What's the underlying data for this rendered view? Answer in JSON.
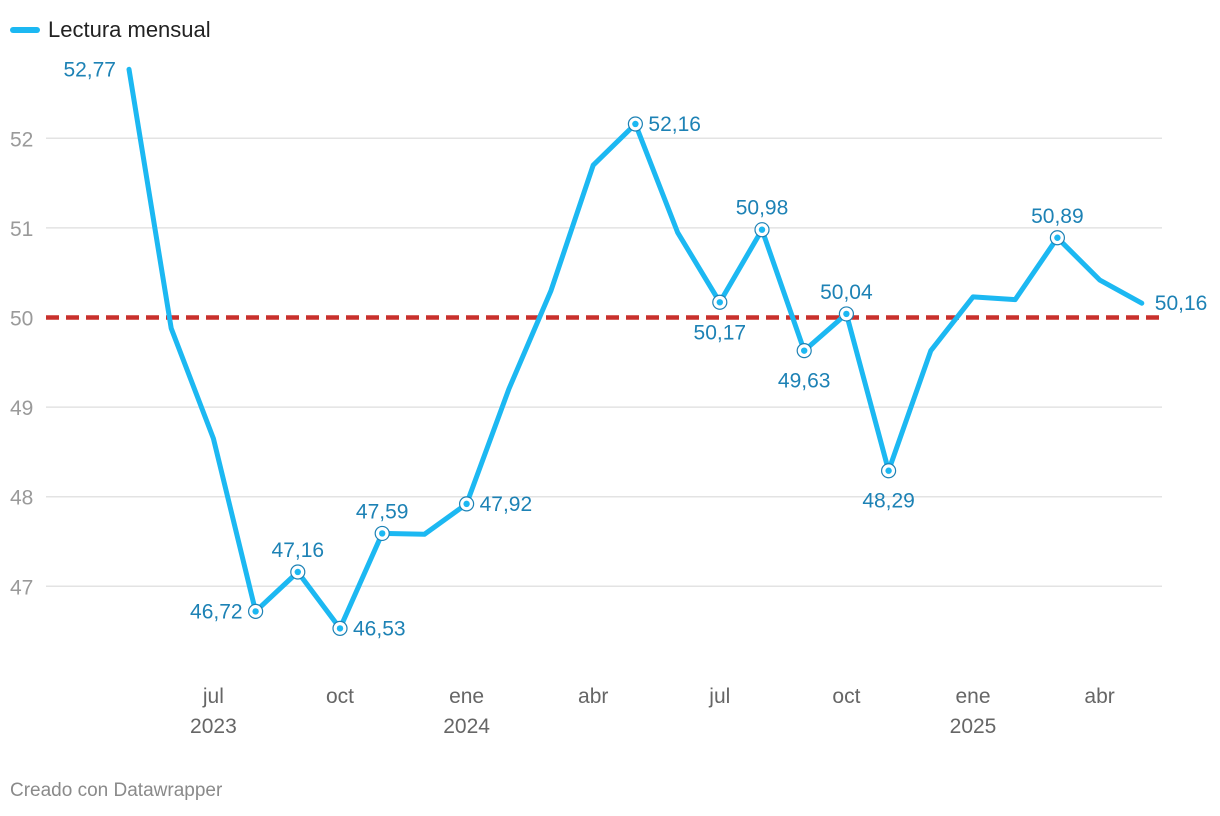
{
  "legend": {
    "label": "Lectura mensual"
  },
  "footer": {
    "credit": "Creado con Datawrapper"
  },
  "colors": {
    "line": "#1cb8f2",
    "reference": "#c9302c",
    "label": "#1d82b5",
    "grid": "#e3e3e3"
  },
  "chart_data": {
    "type": "line",
    "x": [
      "2023-05",
      "2023-06",
      "2023-07",
      "2023-08",
      "2023-09",
      "2023-10",
      "2023-11",
      "2023-12",
      "2024-01",
      "2024-02",
      "2024-03",
      "2024-04",
      "2024-05",
      "2024-06",
      "2024-07",
      "2024-08",
      "2024-09",
      "2024-10",
      "2024-11",
      "2024-12",
      "2025-01",
      "2025-02",
      "2025-03",
      "2025-04",
      "2025-05"
    ],
    "series": [
      {
        "name": "Lectura mensual",
        "values": [
          52.77,
          49.88,
          48.65,
          46.72,
          47.16,
          46.53,
          47.59,
          47.58,
          47.92,
          49.2,
          50.3,
          51.7,
          52.16,
          50.95,
          50.17,
          50.98,
          49.63,
          50.04,
          48.29,
          49.63,
          50.23,
          50.2,
          50.89,
          50.42,
          50.16
        ]
      }
    ],
    "labels": [
      {
        "index": 0,
        "text": "52,77",
        "pos": "left"
      },
      {
        "index": 3,
        "text": "46,72",
        "pos": "left"
      },
      {
        "index": 4,
        "text": "47,16",
        "pos": "top"
      },
      {
        "index": 5,
        "text": "46,53",
        "pos": "right"
      },
      {
        "index": 6,
        "text": "47,59",
        "pos": "top"
      },
      {
        "index": 8,
        "text": "47,92",
        "pos": "right"
      },
      {
        "index": 12,
        "text": "52,16",
        "pos": "right"
      },
      {
        "index": 14,
        "text": "50,17",
        "pos": "bottom"
      },
      {
        "index": 15,
        "text": "50,98",
        "pos": "top"
      },
      {
        "index": 16,
        "text": "49,63",
        "pos": "bottom"
      },
      {
        "index": 17,
        "text": "50,04",
        "pos": "top"
      },
      {
        "index": 18,
        "text": "48,29",
        "pos": "bottom"
      },
      {
        "index": 22,
        "text": "50,89",
        "pos": "top"
      },
      {
        "index": 24,
        "text": "50,16",
        "pos": "right"
      }
    ],
    "reference_line": 50,
    "yticks": [
      47,
      48,
      49,
      50,
      51,
      52
    ],
    "xticks": [
      {
        "at": "2023-07",
        "label": "jul",
        "year": "2023"
      },
      {
        "at": "2023-10",
        "label": "oct",
        "year": ""
      },
      {
        "at": "2024-01",
        "label": "ene",
        "year": "2024"
      },
      {
        "at": "2024-04",
        "label": "abr",
        "year": ""
      },
      {
        "at": "2024-07",
        "label": "jul",
        "year": ""
      },
      {
        "at": "2024-10",
        "label": "oct",
        "year": ""
      },
      {
        "at": "2025-01",
        "label": "ene",
        "year": "2025"
      },
      {
        "at": "2025-04",
        "label": "abr",
        "year": ""
      }
    ],
    "ylim": [
      46,
      53
    ],
    "xlim": [
      "2023-05",
      "2025-05"
    ],
    "grid": true,
    "legend_position": "top-left"
  }
}
